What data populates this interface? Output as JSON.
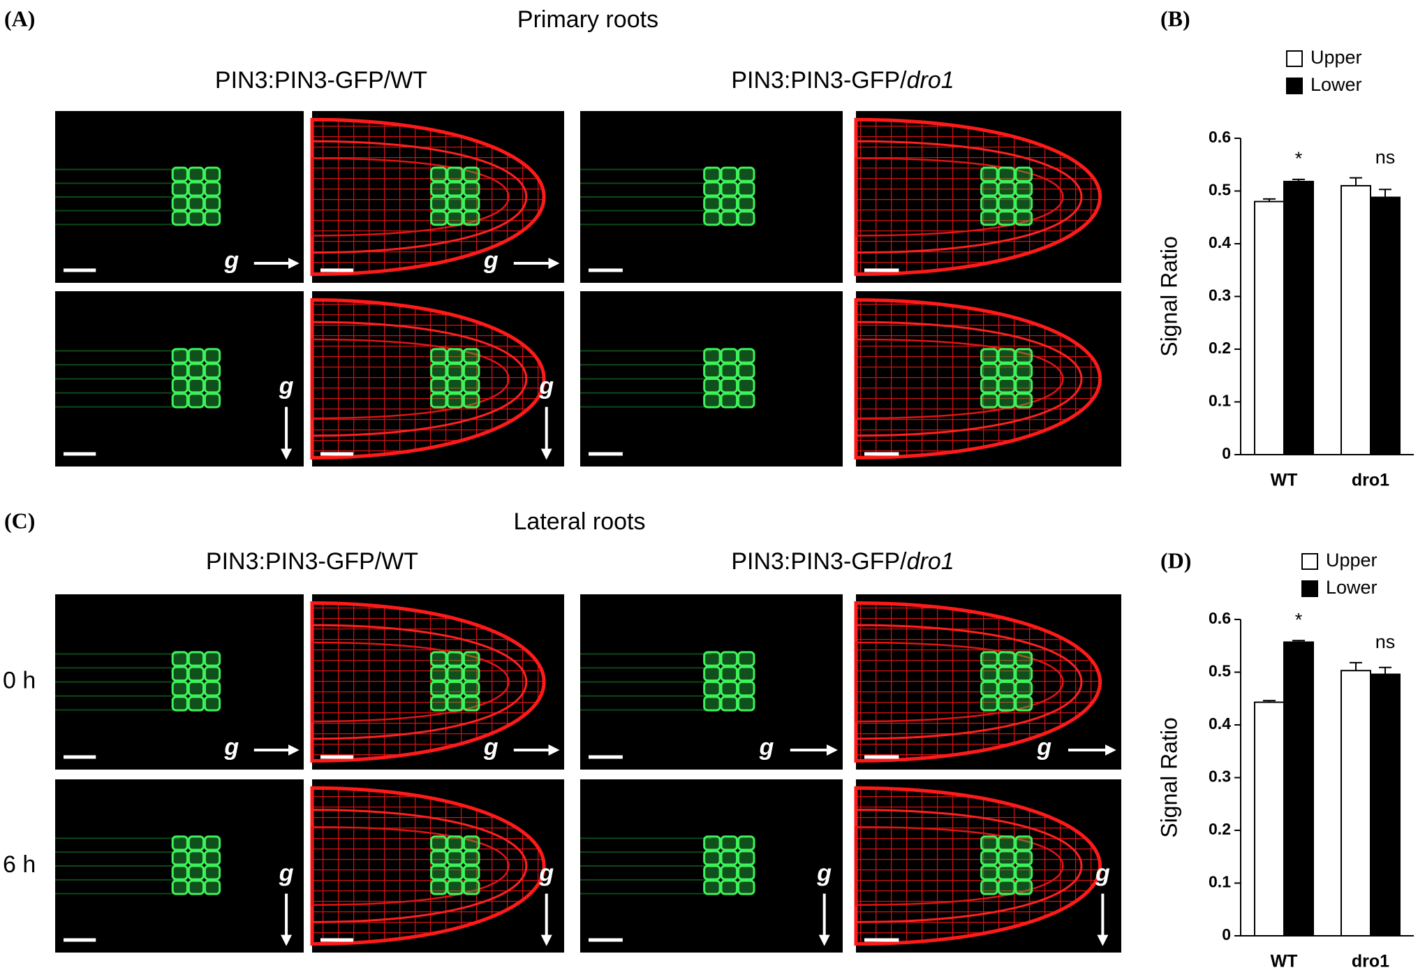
{
  "panel_a": {
    "label": "(A)",
    "title": "Primary roots",
    "genotypes": [
      {
        "text": "PIN3:PIN3-GFP/WT"
      },
      {
        "text": "PIN3:PIN3-GFP/",
        "italic": "dro1"
      }
    ],
    "gravity_label": "g"
  },
  "panel_c": {
    "label": "(C)",
    "title": "Lateral roots",
    "genotypes": [
      {
        "text": "PIN3:PIN3-GFP/WT"
      },
      {
        "text": "PIN3:PIN3-GFP/",
        "italic": "dro1"
      }
    ],
    "times": [
      "0 h",
      "6 h"
    ],
    "gravity_label": "g"
  },
  "chart_data": [
    {
      "type": "bar",
      "label": "(B)",
      "y_label": "Signal Ratio",
      "categories": [
        "WT",
        "dro1"
      ],
      "series": [
        {
          "name": "Upper",
          "color": "#ffffff",
          "values": [
            0.48,
            0.51
          ],
          "errors": [
            0.005,
            0.015
          ]
        },
        {
          "name": "Lower",
          "color": "#000000",
          "values": [
            0.518,
            0.488
          ],
          "errors": [
            0.004,
            0.015
          ]
        }
      ],
      "annotations": [
        "*",
        "ns"
      ],
      "ylim": [
        0,
        0.6
      ],
      "yticks": [
        0,
        0.1,
        0.2,
        0.3,
        0.4,
        0.5,
        0.6
      ]
    },
    {
      "type": "bar",
      "label": "(D)",
      "y_label": "Signal Ratio",
      "categories": [
        "WT",
        "dro1"
      ],
      "series": [
        {
          "name": "Upper",
          "color": "#ffffff",
          "values": [
            0.443,
            0.503
          ],
          "errors": [
            0.003,
            0.015
          ]
        },
        {
          "name": "Lower",
          "color": "#000000",
          "values": [
            0.557,
            0.496
          ],
          "errors": [
            0.003,
            0.013
          ]
        }
      ],
      "annotations": [
        "*",
        "ns"
      ],
      "ylim": [
        0,
        0.6
      ],
      "yticks": [
        0,
        0.1,
        0.2,
        0.3,
        0.4,
        0.5,
        0.6
      ]
    }
  ]
}
